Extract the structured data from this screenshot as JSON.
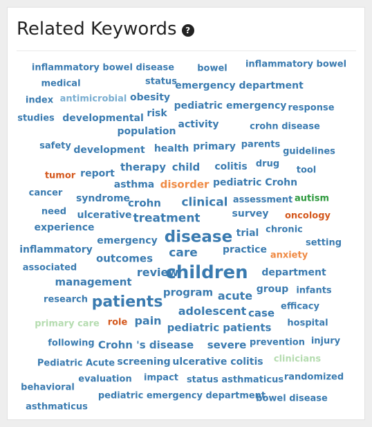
{
  "header": {
    "title": "Related Keywords",
    "help_icon": "question-circle-icon"
  },
  "colors": {
    "blue": "#3a7bb0",
    "light_blue": "#7aaed1",
    "orange": "#ef8a44",
    "red_orange": "#d4581d",
    "green": "#2e9a3e",
    "light_green": "#b5dcb0"
  },
  "keywords": [
    {
      "text": "inflammatory bowel disease",
      "color": "blue",
      "size": 13
    },
    {
      "text": "bowel",
      "color": "blue",
      "size": 13
    },
    {
      "text": "inflammatory bowel",
      "color": "blue",
      "size": 13
    },
    {
      "text": "medical",
      "color": "blue",
      "size": 13
    },
    {
      "text": "status",
      "color": "blue",
      "size": 13
    },
    {
      "text": "emergency department",
      "color": "blue",
      "size": 14
    },
    {
      "text": "index",
      "color": "blue",
      "size": 13
    },
    {
      "text": "antimicrobial",
      "color": "light_blue",
      "size": 13
    },
    {
      "text": "obesity",
      "color": "blue",
      "size": 14
    },
    {
      "text": "pediatric emergency",
      "color": "blue",
      "size": 14
    },
    {
      "text": "response",
      "color": "blue",
      "size": 13
    },
    {
      "text": "studies",
      "color": "blue",
      "size": 13
    },
    {
      "text": "developmental",
      "color": "blue",
      "size": 14
    },
    {
      "text": "risk",
      "color": "blue",
      "size": 14
    },
    {
      "text": "activity",
      "color": "blue",
      "size": 14
    },
    {
      "text": "crohn disease",
      "color": "blue",
      "size": 13
    },
    {
      "text": "population",
      "color": "blue",
      "size": 14
    },
    {
      "text": "safety",
      "color": "blue",
      "size": 13
    },
    {
      "text": "development",
      "color": "blue",
      "size": 14
    },
    {
      "text": "health",
      "color": "blue",
      "size": 14
    },
    {
      "text": "primary",
      "color": "blue",
      "size": 14
    },
    {
      "text": "parents",
      "color": "blue",
      "size": 13
    },
    {
      "text": "guidelines",
      "color": "blue",
      "size": 13
    },
    {
      "text": "tumor",
      "color": "red_orange",
      "size": 13
    },
    {
      "text": "report",
      "color": "blue",
      "size": 14
    },
    {
      "text": "therapy",
      "color": "blue",
      "size": 15
    },
    {
      "text": "child",
      "color": "blue",
      "size": 15
    },
    {
      "text": "colitis",
      "color": "blue",
      "size": 14
    },
    {
      "text": "drug",
      "color": "blue",
      "size": 13
    },
    {
      "text": "tool",
      "color": "blue",
      "size": 13
    },
    {
      "text": "asthma",
      "color": "blue",
      "size": 14
    },
    {
      "text": "disorder",
      "color": "orange",
      "size": 15
    },
    {
      "text": "pediatric Crohn",
      "color": "blue",
      "size": 14
    },
    {
      "text": "cancer",
      "color": "blue",
      "size": 13
    },
    {
      "text": "syndrome",
      "color": "blue",
      "size": 14
    },
    {
      "text": "crohn",
      "color": "blue",
      "size": 15
    },
    {
      "text": "clinical",
      "color": "blue",
      "size": 17
    },
    {
      "text": "assessment",
      "color": "blue",
      "size": 13
    },
    {
      "text": "autism",
      "color": "green",
      "size": 13
    },
    {
      "text": "need",
      "color": "blue",
      "size": 13
    },
    {
      "text": "ulcerative",
      "color": "blue",
      "size": 14
    },
    {
      "text": "treatment",
      "color": "blue",
      "size": 17
    },
    {
      "text": "survey",
      "color": "blue",
      "size": 14
    },
    {
      "text": "oncology",
      "color": "red_orange",
      "size": 13
    },
    {
      "text": "experience",
      "color": "blue",
      "size": 14
    },
    {
      "text": "disease",
      "color": "blue",
      "size": 23
    },
    {
      "text": "trial",
      "color": "blue",
      "size": 14
    },
    {
      "text": "chronic",
      "color": "blue",
      "size": 13
    },
    {
      "text": "emergency",
      "color": "blue",
      "size": 14
    },
    {
      "text": "setting",
      "color": "blue",
      "size": 13
    },
    {
      "text": "inflammatory",
      "color": "blue",
      "size": 14
    },
    {
      "text": "care",
      "color": "blue",
      "size": 17
    },
    {
      "text": "practice",
      "color": "blue",
      "size": 14
    },
    {
      "text": "anxiety",
      "color": "orange",
      "size": 13
    },
    {
      "text": "outcomes",
      "color": "blue",
      "size": 15
    },
    {
      "text": "associated",
      "color": "blue",
      "size": 13
    },
    {
      "text": "children",
      "color": "blue",
      "size": 26
    },
    {
      "text": "review",
      "color": "blue",
      "size": 16
    },
    {
      "text": "department",
      "color": "blue",
      "size": 14
    },
    {
      "text": "management",
      "color": "blue",
      "size": 15
    },
    {
      "text": "program",
      "color": "blue",
      "size": 15
    },
    {
      "text": "group",
      "color": "blue",
      "size": 14
    },
    {
      "text": "infants",
      "color": "blue",
      "size": 13
    },
    {
      "text": "research",
      "color": "blue",
      "size": 13
    },
    {
      "text": "patients",
      "color": "blue",
      "size": 22
    },
    {
      "text": "acute",
      "color": "blue",
      "size": 16
    },
    {
      "text": "efficacy",
      "color": "blue",
      "size": 13
    },
    {
      "text": "adolescent",
      "color": "blue",
      "size": 16
    },
    {
      "text": "case",
      "color": "blue",
      "size": 15
    },
    {
      "text": "primary care",
      "color": "light_green",
      "size": 13
    },
    {
      "text": "role",
      "color": "red_orange",
      "size": 13
    },
    {
      "text": "pain",
      "color": "blue",
      "size": 16
    },
    {
      "text": "pediatric patients",
      "color": "blue",
      "size": 15
    },
    {
      "text": "hospital",
      "color": "blue",
      "size": 13
    },
    {
      "text": "following",
      "color": "blue",
      "size": 13
    },
    {
      "text": "Crohn 's disease",
      "color": "blue",
      "size": 15
    },
    {
      "text": "severe",
      "color": "blue",
      "size": 15
    },
    {
      "text": "prevention",
      "color": "blue",
      "size": 13
    },
    {
      "text": "injury",
      "color": "blue",
      "size": 13
    },
    {
      "text": "clinicians",
      "color": "light_green",
      "size": 13
    },
    {
      "text": "Pediatric Acute",
      "color": "blue",
      "size": 13
    },
    {
      "text": "screening",
      "color": "blue",
      "size": 14
    },
    {
      "text": "ulcerative colitis",
      "color": "blue",
      "size": 14
    },
    {
      "text": "behavioral",
      "color": "blue",
      "size": 13
    },
    {
      "text": "evaluation",
      "color": "blue",
      "size": 13
    },
    {
      "text": "impact",
      "color": "blue",
      "size": 13
    },
    {
      "text": "status asthmaticus",
      "color": "blue",
      "size": 13
    },
    {
      "text": "randomized",
      "color": "blue",
      "size": 13
    },
    {
      "text": "asthmaticus",
      "color": "blue",
      "size": 13
    },
    {
      "text": "pediatric emergency department",
      "color": "blue",
      "size": 13
    },
    {
      "text": "bowel disease",
      "color": "blue",
      "size": 13
    }
  ]
}
